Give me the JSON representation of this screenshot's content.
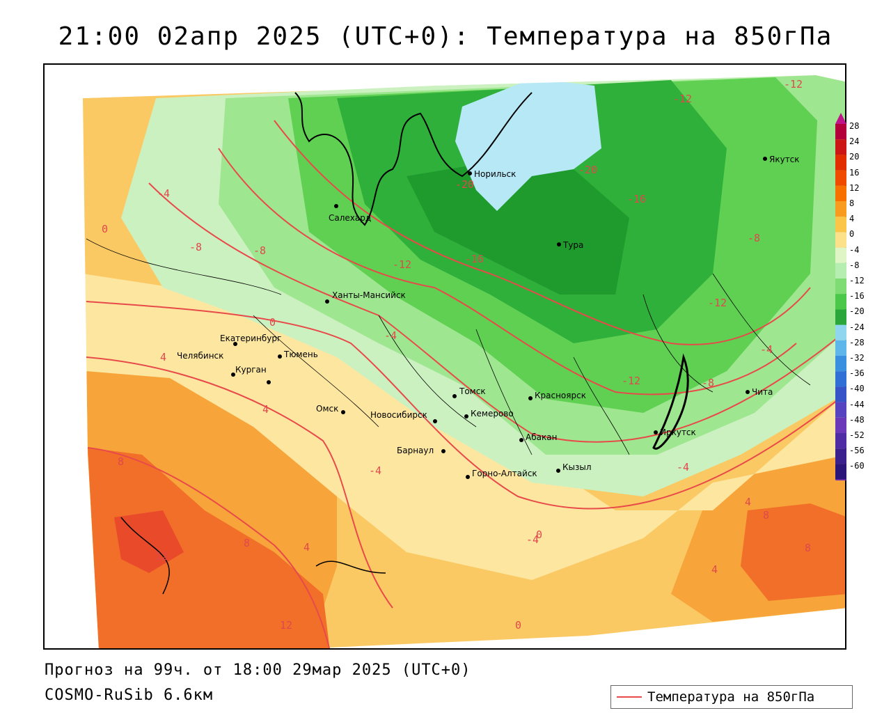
{
  "title": "21:00 02апр 2025 (UTC+0): Температура на 850гПа",
  "footer": {
    "forecast": "Прогноз на 99ч. от 18:00 29мар 2025 (UTC+0)",
    "model": "COSMO-RuSib 6.6км"
  },
  "legend": {
    "label": "Температура на 850гПа",
    "line_color": "#e84a4a"
  },
  "scale": {
    "labels": [
      "28",
      "24",
      "20",
      "16",
      "12",
      "8",
      "4",
      "0",
      "-4",
      "-8",
      "-12",
      "-16",
      "-20",
      "-24",
      "-28",
      "-32",
      "-36",
      "-40",
      "-44",
      "-48",
      "-52",
      "-56",
      "-60"
    ],
    "colors": [
      "#b3003b",
      "#cc1616",
      "#e22d00",
      "#f04a00",
      "#f77000",
      "#f99b1f",
      "#fbc54a",
      "#fde08a",
      "#dff5c6",
      "#b6edb1",
      "#7fdc74",
      "#4bc84a",
      "#2aa63a",
      "#8fd6ee",
      "#5fb6ea",
      "#3a8fe0",
      "#2f6fd6",
      "#3753c8",
      "#5643c0",
      "#6a38b8",
      "#4f2ca4",
      "#3a1f8e",
      "#2b157a"
    ]
  },
  "cities": [
    {
      "name": "Норильск"
    },
    {
      "name": "Якутск"
    },
    {
      "name": "Салехард"
    },
    {
      "name": "Тура"
    },
    {
      "name": "Ханты-Мансийск"
    },
    {
      "name": "Екатеринбург"
    },
    {
      "name": "Тюмень"
    },
    {
      "name": "Челябинск"
    },
    {
      "name": "Курган"
    },
    {
      "name": "Омск"
    },
    {
      "name": "Новосибирск"
    },
    {
      "name": "Томск"
    },
    {
      "name": "Красноярск"
    },
    {
      "name": "Кемерово"
    },
    {
      "name": "Абакан"
    },
    {
      "name": "Барнаул"
    },
    {
      "name": "Горно-Алтайск"
    },
    {
      "name": "Кызыл"
    },
    {
      "name": "Иркутск"
    },
    {
      "name": "Чита"
    }
  ],
  "contour_labels": [
    "-20",
    "-16",
    "-12",
    "-8",
    "-4",
    "0",
    "4",
    "8",
    "12"
  ]
}
